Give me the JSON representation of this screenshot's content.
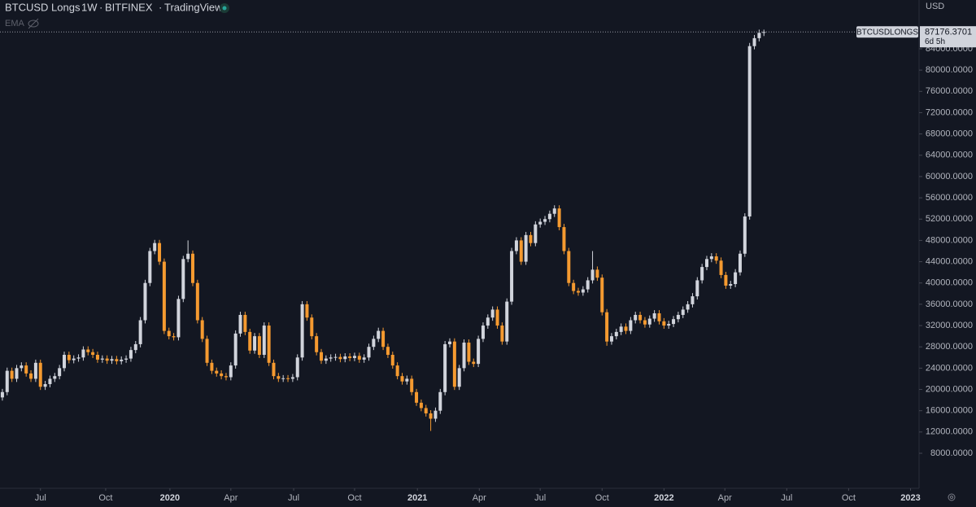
{
  "chart_data": {
    "type": "candlestick",
    "title": "BTCUSD Longs",
    "interval": "1W",
    "exchange": "BITFINEX",
    "source": "TradingView",
    "indicator": "EMA",
    "currency": "USD",
    "symbol_label": "BTCUSDLONGS",
    "countdown": "6d 5h",
    "up_color": "#d1d4dc",
    "down_color": "#f59a30",
    "open": [
      18500,
      19500,
      23500,
      22000,
      24000,
      24500,
      23000,
      22000,
      25000,
      20500,
      21000,
      22000,
      22500,
      24000,
      26500,
      25500,
      25800,
      26000,
      27500,
      27000,
      26500,
      25600,
      25800,
      25400,
      25700,
      25300,
      25600,
      25800,
      27400,
      28500,
      33000,
      40000,
      46000,
      47500,
      44000,
      31000,
      30000,
      29800,
      37000,
      44500,
      45500,
      40000,
      33000,
      29500,
      25000,
      23500,
      23000,
      22500,
      22300,
      24500,
      30500,
      34000,
      30800,
      27300,
      30000,
      26500,
      32000,
      25000,
      22500,
      22000,
      22100,
      22000,
      22300,
      26000,
      36000,
      33500,
      30000,
      27000,
      25400,
      25800,
      26000,
      26100,
      25700,
      26200,
      25900,
      26300,
      25600,
      26000,
      28000,
      29500,
      31000,
      28000,
      26500,
      24500,
      22500,
      21500,
      22000,
      19500,
      17500,
      16500,
      15500,
      14500,
      16000,
      19500,
      28500,
      29000,
      20500,
      24000,
      28800,
      25200,
      24800,
      29500,
      32000,
      33500,
      35000,
      32000,
      29000,
      36500,
      46000,
      48000,
      44000,
      49000,
      47500,
      51000,
      51500,
      52000,
      53000,
      54000,
      50500,
      46000,
      40000,
      38500,
      38200,
      38800,
      40500,
      42500,
      41000,
      34500,
      29000,
      30000,
      30800,
      31800,
      31000,
      33000,
      34000,
      33000,
      32200,
      33300,
      34300,
      32800,
      32000,
      32300,
      33200,
      34000,
      35000,
      36000,
      37500,
      40500,
      43000,
      44500,
      45000,
      44200,
      41500,
      39500,
      39800,
      42000,
      45500,
      52500,
      84500,
      86000,
      87000
    ],
    "high": [
      20100,
      24100,
      24100,
      24600,
      25100,
      25100,
      23600,
      25600,
      25600,
      21600,
      22600,
      23100,
      24600,
      27100,
      27100,
      26400,
      26600,
      28100,
      28100,
      27600,
      27100,
      26400,
      26400,
      26300,
      26300,
      26200,
      26400,
      28000,
      29100,
      33600,
      40600,
      46600,
      48100,
      48100,
      44600,
      31600,
      30600,
      37600,
      45100,
      48000,
      46100,
      40600,
      33600,
      30100,
      25600,
      24100,
      23600,
      23100,
      25100,
      31100,
      34600,
      34600,
      31400,
      30600,
      30600,
      32600,
      32600,
      25600,
      23100,
      22700,
      22700,
      22900,
      26600,
      36600,
      36600,
      34100,
      30600,
      27600,
      26400,
      26600,
      26700,
      26700,
      26800,
      26800,
      26900,
      26900,
      26600,
      28600,
      30100,
      31600,
      31600,
      28600,
      27100,
      25100,
      23100,
      22600,
      22600,
      20100,
      18100,
      17100,
      16100,
      16600,
      20100,
      29100,
      29600,
      29600,
      24600,
      29400,
      29400,
      25800,
      30100,
      32600,
      34100,
      35600,
      35600,
      32600,
      37100,
      46600,
      48600,
      48600,
      49600,
      49600,
      51600,
      52100,
      52600,
      53600,
      54600,
      54600,
      51100,
      46600,
      40600,
      39100,
      39400,
      41100,
      46000,
      43100,
      41600,
      35100,
      30600,
      31400,
      32400,
      32400,
      33600,
      34600,
      34600,
      33600,
      33900,
      34900,
      34900,
      33400,
      32900,
      33800,
      34600,
      35600,
      36600,
      38100,
      41100,
      43600,
      45100,
      45600,
      45600,
      44800,
      42100,
      40400,
      42600,
      46100,
      53100,
      85100,
      86600,
      87600,
      87600
    ],
    "low": [
      17900,
      18900,
      21400,
      21400,
      23400,
      22400,
      21400,
      21400,
      19900,
      19900,
      20400,
      21400,
      21900,
      23400,
      24900,
      24900,
      25200,
      25400,
      26400,
      25900,
      25000,
      25000,
      24800,
      24800,
      24700,
      24700,
      25000,
      25200,
      26800,
      27900,
      32400,
      39400,
      45400,
      43400,
      30400,
      29400,
      29200,
      29200,
      36400,
      43900,
      39400,
      32400,
      28900,
      24400,
      22900,
      22400,
      21900,
      21700,
      21700,
      23900,
      29900,
      30200,
      26700,
      26700,
      25900,
      25900,
      24400,
      21900,
      21400,
      21400,
      21400,
      21400,
      21700,
      25400,
      32900,
      29400,
      26400,
      24800,
      24800,
      25200,
      25400,
      25100,
      25100,
      25300,
      25300,
      25000,
      25000,
      25400,
      27400,
      28900,
      27400,
      25900,
      23900,
      21900,
      20900,
      20900,
      18900,
      16900,
      15900,
      14900,
      12200,
      13900,
      15400,
      18900,
      27900,
      19900,
      19900,
      23400,
      24600,
      24200,
      24200,
      28900,
      31400,
      32900,
      31400,
      28400,
      28400,
      35900,
      45400,
      43400,
      43400,
      46900,
      46900,
      50400,
      50900,
      51400,
      52400,
      49900,
      45400,
      39400,
      37900,
      37600,
      37600,
      38200,
      39900,
      40400,
      33900,
      28200,
      28400,
      29400,
      30200,
      30400,
      30400,
      32400,
      32400,
      31600,
      31600,
      32700,
      32200,
      31400,
      31400,
      31700,
      32600,
      33400,
      34400,
      35400,
      36900,
      39900,
      42400,
      43900,
      43600,
      40900,
      38900,
      38900,
      39200,
      41400,
      44900,
      51900,
      83900,
      85400,
      86400
    ],
    "close": [
      19500,
      23500,
      22000,
      24000,
      24500,
      23000,
      22000,
      25000,
      20500,
      21000,
      22000,
      22500,
      24000,
      26500,
      25500,
      25800,
      26000,
      27500,
      27000,
      26500,
      25600,
      25800,
      25400,
      25700,
      25300,
      25600,
      25800,
      27400,
      28500,
      33000,
      40000,
      46000,
      47500,
      44000,
      31000,
      30000,
      29800,
      37000,
      44500,
      45500,
      40000,
      33000,
      29500,
      25000,
      23500,
      23000,
      22500,
      22300,
      24500,
      30500,
      34000,
      30800,
      27300,
      30000,
      26500,
      32000,
      25000,
      22500,
      22000,
      22100,
      22000,
      22300,
      26000,
      36000,
      33500,
      30000,
      27000,
      25400,
      25800,
      26000,
      26100,
      25700,
      26200,
      25900,
      26300,
      25600,
      26000,
      28000,
      29500,
      31000,
      28000,
      26500,
      24500,
      22500,
      21500,
      22000,
      19500,
      17500,
      16500,
      15500,
      14500,
      16000,
      19500,
      28500,
      29000,
      20500,
      24000,
      28800,
      25200,
      24800,
      29500,
      32000,
      33500,
      35000,
      32000,
      29000,
      36500,
      46000,
      48000,
      44000,
      49000,
      47500,
      51000,
      51500,
      52000,
      53000,
      54000,
      50500,
      46000,
      40000,
      38500,
      38200,
      38800,
      40500,
      42500,
      41000,
      34500,
      29000,
      30000,
      30800,
      31800,
      31000,
      33000,
      34000,
      33000,
      32200,
      33300,
      34300,
      32800,
      32000,
      32300,
      33200,
      34000,
      35000,
      36000,
      37500,
      40500,
      43000,
      44500,
      45000,
      44200,
      41500,
      39500,
      39800,
      42000,
      45500,
      52500,
      84500,
      86000,
      87000,
      87176.3701
    ],
    "xlim": [
      -0.5,
      192.6
    ],
    "xticks": [
      {
        "value": 8.0,
        "label": "Jul"
      },
      {
        "value": 21.7,
        "label": "Oct"
      },
      {
        "value": 35.2,
        "label": "2020"
      },
      {
        "value": 48.0,
        "label": "Apr"
      },
      {
        "value": 61.2,
        "label": "Jul"
      },
      {
        "value": 74.0,
        "label": "Oct"
      },
      {
        "value": 87.2,
        "label": "2021"
      },
      {
        "value": 100.2,
        "label": "Apr"
      },
      {
        "value": 113.0,
        "label": "Jul"
      },
      {
        "value": 126.0,
        "label": "Oct"
      },
      {
        "value": 139.0,
        "label": "2022"
      },
      {
        "value": 151.8,
        "label": "Apr"
      },
      {
        "value": 164.8,
        "label": "Jul"
      },
      {
        "value": 177.8,
        "label": "Oct"
      },
      {
        "value": 190.8,
        "label": "2023"
      }
    ],
    "ylim": [
      1425,
      93170
    ],
    "yticks": [
      {
        "value": 8000,
        "label": "8000.0000"
      },
      {
        "value": 12000,
        "label": "12000.0000"
      },
      {
        "value": 16000,
        "label": "16000.0000"
      },
      {
        "value": 20000,
        "label": "20000.0000"
      },
      {
        "value": 24000,
        "label": "24000.0000"
      },
      {
        "value": 28000,
        "label": "28000.0000"
      },
      {
        "value": 32000,
        "label": "32000.0000"
      },
      {
        "value": 36000,
        "label": "36000.0000"
      },
      {
        "value": 40000,
        "label": "40000.0000"
      },
      {
        "value": 44000,
        "label": "44000.0000"
      },
      {
        "value": 48000,
        "label": "48000.0000"
      },
      {
        "value": 52000,
        "label": "52000.0000"
      },
      {
        "value": 56000,
        "label": "56000.0000"
      },
      {
        "value": 60000,
        "label": "60000.0000"
      },
      {
        "value": 64000,
        "label": "64000.0000"
      },
      {
        "value": 68000,
        "label": "68000.0000"
      },
      {
        "value": 72000,
        "label": "72000.0000"
      },
      {
        "value": 76000,
        "label": "76000.0000"
      },
      {
        "value": 80000,
        "label": "80000.0000"
      },
      {
        "value": 84000,
        "label": "84000.0000"
      }
    ],
    "grid": false
  }
}
